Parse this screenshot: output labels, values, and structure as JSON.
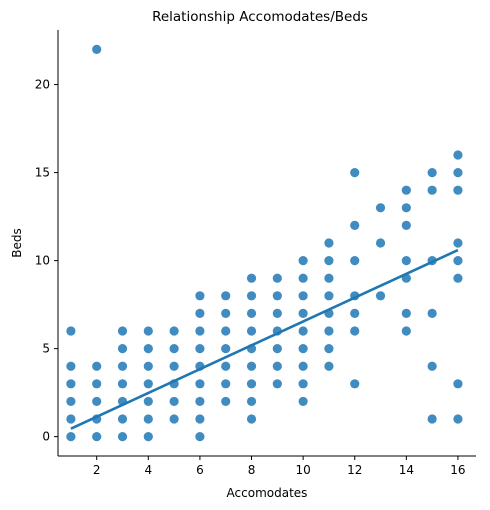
{
  "chart_data": {
    "type": "scatter",
    "title": "Relationship Accomodates/Beds",
    "xlabel": "Accomodates",
    "ylabel": "Beds",
    "xlim": [
      0.5,
      16.7
    ],
    "ylim": [
      -1.1,
      23.1
    ],
    "xticks": [
      2,
      4,
      6,
      8,
      10,
      12,
      14,
      16
    ],
    "yticks": [
      0,
      5,
      10,
      15,
      20
    ],
    "grid": false,
    "color": "#1f77b4",
    "regression_line": {
      "x": [
        1,
        16
      ],
      "y": [
        0.45,
        10.6
      ]
    },
    "points": [
      [
        1,
        0
      ],
      [
        1,
        1
      ],
      [
        1,
        2
      ],
      [
        1,
        3
      ],
      [
        1,
        4
      ],
      [
        1,
        6
      ],
      [
        2,
        0
      ],
      [
        2,
        1
      ],
      [
        2,
        2
      ],
      [
        2,
        3
      ],
      [
        2,
        4
      ],
      [
        2,
        22
      ],
      [
        3,
        0
      ],
      [
        3,
        1
      ],
      [
        3,
        2
      ],
      [
        3,
        3
      ],
      [
        3,
        4
      ],
      [
        3,
        5
      ],
      [
        3,
        6
      ],
      [
        4,
        0
      ],
      [
        4,
        1
      ],
      [
        4,
        2
      ],
      [
        4,
        3
      ],
      [
        4,
        4
      ],
      [
        4,
        5
      ],
      [
        4,
        6
      ],
      [
        5,
        1
      ],
      [
        5,
        2
      ],
      [
        5,
        3
      ],
      [
        5,
        4
      ],
      [
        5,
        5
      ],
      [
        5,
        6
      ],
      [
        6,
        0
      ],
      [
        6,
        1
      ],
      [
        6,
        2
      ],
      [
        6,
        3
      ],
      [
        6,
        4
      ],
      [
        6,
        5
      ],
      [
        6,
        6
      ],
      [
        6,
        7
      ],
      [
        6,
        8
      ],
      [
        7,
        2
      ],
      [
        7,
        3
      ],
      [
        7,
        4
      ],
      [
        7,
        5
      ],
      [
        7,
        6
      ],
      [
        7,
        7
      ],
      [
        7,
        8
      ],
      [
        8,
        1
      ],
      [
        8,
        2
      ],
      [
        8,
        3
      ],
      [
        8,
        4
      ],
      [
        8,
        5
      ],
      [
        8,
        6
      ],
      [
        8,
        7
      ],
      [
        8,
        8
      ],
      [
        8,
        9
      ],
      [
        9,
        3
      ],
      [
        9,
        4
      ],
      [
        9,
        5
      ],
      [
        9,
        6
      ],
      [
        9,
        7
      ],
      [
        9,
        8
      ],
      [
        9,
        9
      ],
      [
        10,
        2
      ],
      [
        10,
        3
      ],
      [
        10,
        4
      ],
      [
        10,
        5
      ],
      [
        10,
        6
      ],
      [
        10,
        7
      ],
      [
        10,
        8
      ],
      [
        10,
        9
      ],
      [
        10,
        10
      ],
      [
        11,
        4
      ],
      [
        11,
        5
      ],
      [
        11,
        6
      ],
      [
        11,
        7
      ],
      [
        11,
        8
      ],
      [
        11,
        9
      ],
      [
        11,
        10
      ],
      [
        11,
        11
      ],
      [
        12,
        3
      ],
      [
        12,
        6
      ],
      [
        12,
        7
      ],
      [
        12,
        8
      ],
      [
        12,
        10
      ],
      [
        12,
        12
      ],
      [
        12,
        15
      ],
      [
        13,
        8
      ],
      [
        13,
        11
      ],
      [
        13,
        13
      ],
      [
        14,
        6
      ],
      [
        14,
        7
      ],
      [
        14,
        9
      ],
      [
        14,
        10
      ],
      [
        14,
        12
      ],
      [
        14,
        13
      ],
      [
        14,
        14
      ],
      [
        15,
        1
      ],
      [
        15,
        4
      ],
      [
        15,
        7
      ],
      [
        15,
        10
      ],
      [
        15,
        14
      ],
      [
        15,
        15
      ],
      [
        16,
        1
      ],
      [
        16,
        3
      ],
      [
        16,
        9
      ],
      [
        16,
        10
      ],
      [
        16,
        11
      ],
      [
        16,
        14
      ],
      [
        16,
        15
      ],
      [
        16,
        16
      ]
    ]
  }
}
